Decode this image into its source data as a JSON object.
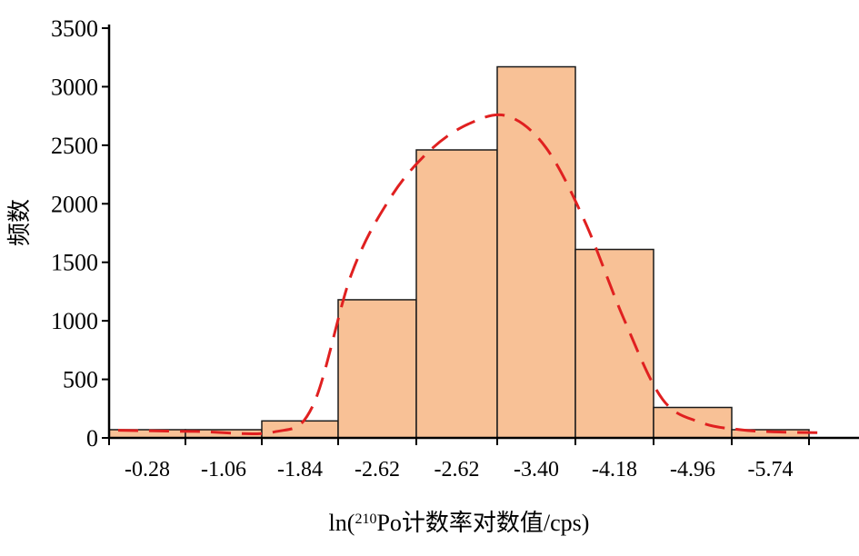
{
  "chart_data": {
    "type": "bar",
    "categories": [
      "-0.28",
      "-1.06",
      "-1.84",
      "-2.62",
      "-2.62",
      "-3.40",
      "-4.18",
      "-4.96",
      "-5.74"
    ],
    "values": [
      70,
      70,
      145,
      1180,
      2460,
      3170,
      1610,
      260,
      70
    ],
    "fit_curve": {
      "style": "dashed",
      "x": [
        0,
        1,
        2,
        2.5,
        3,
        3.5,
        4,
        4.5,
        5,
        5.5,
        6,
        6.5,
        7,
        7.5,
        8,
        8.5,
        9
      ],
      "y": [
        65,
        55,
        50,
        270,
        1400,
        2050,
        2450,
        2680,
        2750,
        2480,
        1850,
        1020,
        330,
        130,
        70,
        50,
        45
      ]
    },
    "xlabel_parts": {
      "prefix": "ln(",
      "superscript": "210",
      "suffix": "Po计数率对数值/cps)"
    },
    "ylabel": "频数",
    "yticks": [
      "0",
      "500",
      "1000",
      "1500",
      "2000",
      "2500",
      "3000",
      "3500"
    ],
    "ylim": [
      0,
      3500
    ],
    "colors": {
      "bar_fill": "#F8C196",
      "bar_stroke": "#1a1a1a",
      "curve": "#E02020",
      "axis": "#000000"
    }
  }
}
